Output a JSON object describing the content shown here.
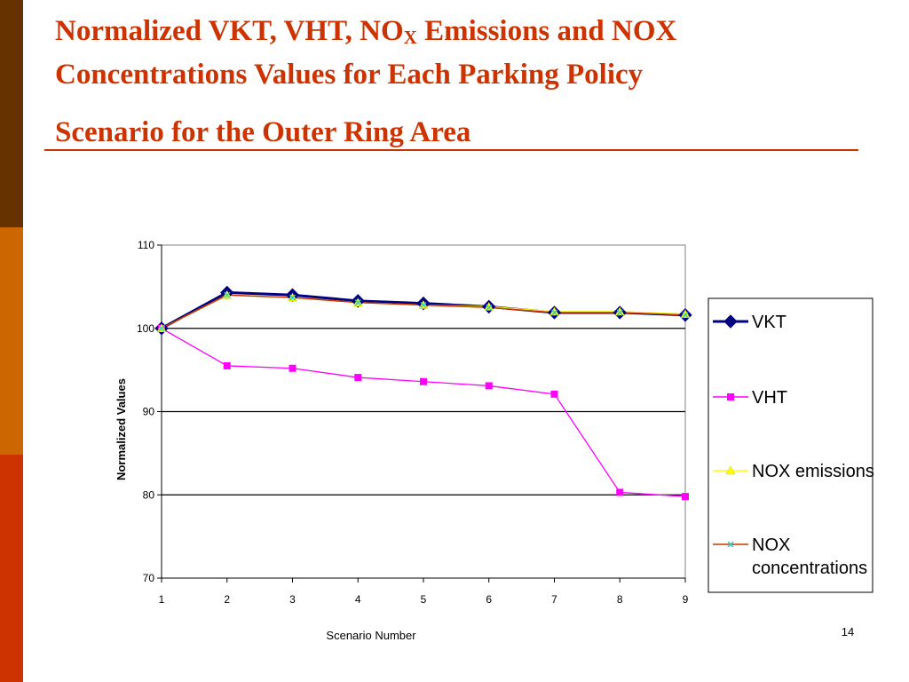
{
  "slide": {
    "title_line1_pre": "Normalized VKT, VHT, NO",
    "title_line1_sub": "X",
    "title_line1_post": " Emissions and NOX",
    "title_line2": "Concentrations Values for Each Parking Policy",
    "title_line3": "Scenario  for the  Outer Ring Area",
    "page_number": "14"
  },
  "colors": {
    "title": "#cc3300",
    "bar_top": "#663300",
    "bar_middle": "#cc6600",
    "bar_bottom": "#cc3300"
  },
  "chart_data": {
    "type": "line",
    "x": [
      1,
      2,
      3,
      4,
      5,
      6,
      7,
      8,
      9
    ],
    "xlabel": "Scenario Number",
    "ylabel": "Normalized Values",
    "ylim": [
      70,
      110
    ],
    "yticks": [
      70,
      80,
      90,
      100,
      110
    ],
    "grid": "horizontal",
    "legend_position": "right",
    "series": [
      {
        "name": "VKT",
        "values": [
          100,
          104.3,
          104.0,
          103.3,
          103.0,
          102.6,
          101.9,
          101.9,
          101.6
        ],
        "color": "#000080",
        "marker": "diamond"
      },
      {
        "name": "VHT",
        "values": [
          100,
          95.5,
          95.2,
          94.1,
          93.6,
          93.1,
          92.1,
          80.3,
          79.8
        ],
        "color": "#ff00ff",
        "marker": "square"
      },
      {
        "name": "NOX emissions",
        "values": [
          100,
          104.0,
          103.7,
          103.1,
          102.8,
          102.6,
          102.0,
          102.0,
          101.7
        ],
        "color": "#ffff00",
        "marker": "triangle"
      },
      {
        "name": "NOX concentrations",
        "values": [
          100,
          104.0,
          103.7,
          103.1,
          102.8,
          102.5,
          101.9,
          101.9,
          101.6
        ],
        "color": "#cc3300",
        "marker": "cross"
      }
    ]
  }
}
